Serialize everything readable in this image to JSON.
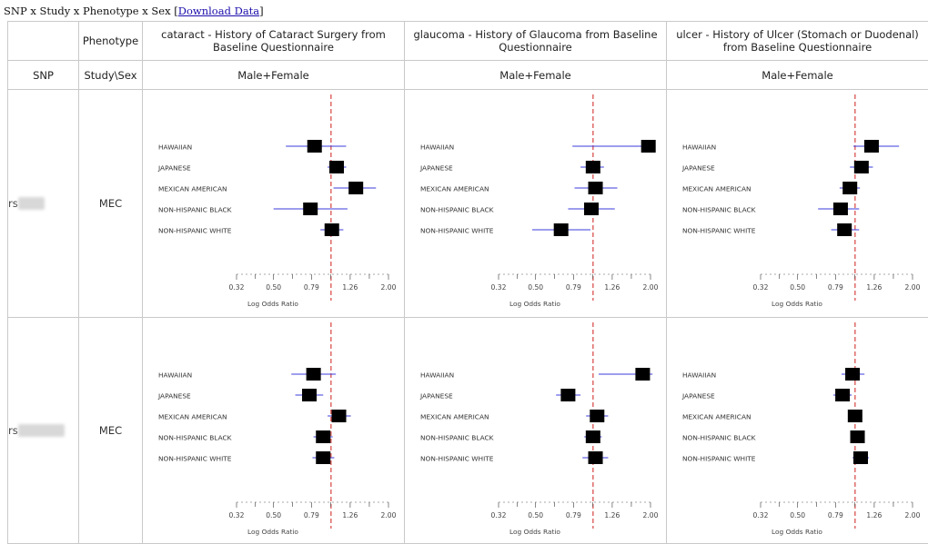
{
  "caption": {
    "text": "SNP x Study x Phenotype x Sex",
    "link_bracket_open": "[",
    "link": "Download Data",
    "link_bracket_close": "]"
  },
  "table": {
    "col_headers": {
      "phenotype": "Phenotype",
      "snp": "SNP",
      "study_sex": "Study\\Sex"
    },
    "phenotypes": [
      {
        "line1": "cataract - History of Cataract Surgery from",
        "line2": "Baseline Questionnaire",
        "sex": "Male+Female"
      },
      {
        "line1": "glaucoma - History of Glaucoma from Baseline",
        "line2": "Questionnaire",
        "sex": "Male+Female"
      },
      {
        "line1": "ulcer - History of Ulcer (Stomach or Duodenal)",
        "line2": "from Baseline Questionnaire",
        "sex": "Male+Female"
      }
    ],
    "rows": [
      {
        "snp_prefix": "rs",
        "snp_suffix": "6365",
        "study": "MEC"
      },
      {
        "snp_prefix": "rs",
        "snp_suffix": "8050136",
        "study": "MEC"
      }
    ]
  },
  "chart_data": {
    "type": "forest",
    "xlabel": "Log Odds Ratio",
    "xticks": [
      0.32,
      0.5,
      0.79,
      1.26,
      2.0
    ],
    "xtick_labels": [
      "0.32",
      "0.50",
      "0.79",
      "1.26",
      "2.00"
    ],
    "xlim": [
      0.32,
      2.0
    ],
    "x_scale": "log",
    "reference_line": 1.0,
    "reference_color": "#d9534f",
    "ci_color": "#3b3bdc",
    "marker_color": "#000000",
    "populations": [
      "HAWAIIAN",
      "JAPANESE",
      "MEXICAN AMERICAN",
      "NON-HISPANIC BLACK",
      "NON-HISPANIC WHITE"
    ],
    "panels": [
      {
        "row": 0,
        "col": 0,
        "points": [
          {
            "or": 0.82,
            "lo": 0.58,
            "hi": 1.2
          },
          {
            "or": 1.07,
            "lo": 0.96,
            "hi": 1.2
          },
          {
            "or": 1.35,
            "lo": 1.03,
            "hi": 1.72
          },
          {
            "or": 0.78,
            "lo": 0.5,
            "hi": 1.22
          },
          {
            "or": 1.01,
            "lo": 0.88,
            "hi": 1.16
          }
        ]
      },
      {
        "row": 0,
        "col": 1,
        "points": [
          {
            "or": 1.95,
            "lo": 0.78,
            "hi": 2.08
          },
          {
            "or": 1.0,
            "lo": 0.86,
            "hi": 1.14
          },
          {
            "or": 1.03,
            "lo": 0.8,
            "hi": 1.34
          },
          {
            "or": 0.98,
            "lo": 0.74,
            "hi": 1.3
          },
          {
            "or": 0.68,
            "lo": 0.48,
            "hi": 0.97
          }
        ]
      },
      {
        "row": 0,
        "col": 2,
        "points": [
          {
            "or": 1.22,
            "lo": 0.98,
            "hi": 1.7
          },
          {
            "or": 1.08,
            "lo": 0.94,
            "hi": 1.24
          },
          {
            "or": 0.94,
            "lo": 0.83,
            "hi": 1.06
          },
          {
            "or": 0.84,
            "lo": 0.64,
            "hi": 1.05
          },
          {
            "or": 0.88,
            "lo": 0.75,
            "hi": 1.05
          }
        ]
      },
      {
        "row": 1,
        "col": 0,
        "points": [
          {
            "or": 0.81,
            "lo": 0.62,
            "hi": 1.06
          },
          {
            "or": 0.77,
            "lo": 0.65,
            "hi": 0.91
          },
          {
            "or": 1.1,
            "lo": 0.96,
            "hi": 1.27
          },
          {
            "or": 0.91,
            "lo": 0.81,
            "hi": 1.02
          },
          {
            "or": 0.91,
            "lo": 0.8,
            "hi": 1.04
          }
        ]
      },
      {
        "row": 1,
        "col": 1,
        "points": [
          {
            "or": 1.82,
            "lo": 1.07,
            "hi": 2.05
          },
          {
            "or": 0.74,
            "lo": 0.64,
            "hi": 0.86
          },
          {
            "or": 1.05,
            "lo": 0.92,
            "hi": 1.2
          },
          {
            "or": 1.0,
            "lo": 0.9,
            "hi": 1.11
          },
          {
            "or": 1.03,
            "lo": 0.88,
            "hi": 1.2
          }
        ]
      },
      {
        "row": 1,
        "col": 2,
        "points": [
          {
            "or": 0.97,
            "lo": 0.85,
            "hi": 1.12
          },
          {
            "or": 0.86,
            "lo": 0.77,
            "hi": 0.96
          },
          {
            "or": 1.0,
            "lo": 0.92,
            "hi": 1.09
          },
          {
            "or": 1.03,
            "lo": 0.95,
            "hi": 1.12
          },
          {
            "or": 1.07,
            "lo": 0.97,
            "hi": 1.18
          }
        ]
      }
    ]
  }
}
